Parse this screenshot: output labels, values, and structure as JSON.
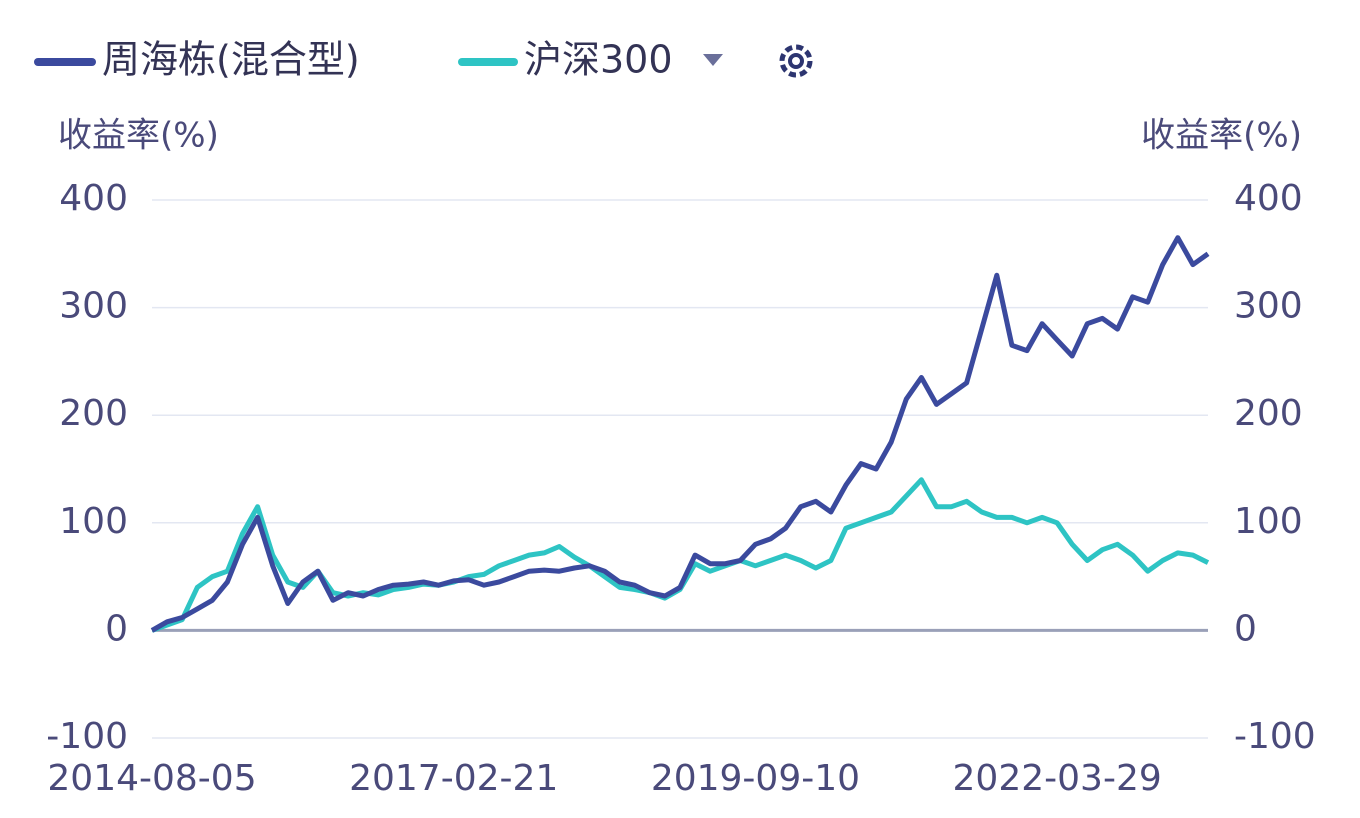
{
  "chart_data": {
    "type": "line",
    "y_label": "收益率(%)",
    "y2_label": "收益率(%)",
    "categories": [
      "2014-08-05",
      null,
      null,
      null,
      null,
      null,
      null,
      null,
      null,
      null,
      null,
      null,
      null,
      null,
      null,
      null,
      null,
      null,
      null,
      null,
      "2017-02-21",
      null,
      null,
      null,
      null,
      null,
      null,
      null,
      null,
      null,
      null,
      null,
      null,
      null,
      null,
      null,
      null,
      null,
      null,
      null,
      "2019-09-10",
      null,
      null,
      null,
      null,
      null,
      null,
      null,
      null,
      null,
      null,
      null,
      null,
      null,
      null,
      null,
      null,
      null,
      null,
      null,
      "2022-03-29",
      null,
      null,
      null,
      null,
      null,
      null,
      null,
      null,
      null,
      null
    ],
    "series": [
      {
        "name": "周海栋(混合型)",
        "color": "#3b4a9e",
        "values": [
          0,
          8,
          12,
          20,
          28,
          45,
          80,
          105,
          60,
          25,
          45,
          55,
          28,
          35,
          32,
          38,
          42,
          43,
          45,
          42,
          46,
          47,
          42,
          45,
          50,
          55,
          56,
          55,
          58,
          60,
          55,
          45,
          42,
          35,
          32,
          40,
          70,
          62,
          62,
          65,
          80,
          85,
          95,
          115,
          120,
          110,
          135,
          155,
          150,
          175,
          215,
          235,
          210,
          220,
          230,
          280,
          330,
          265,
          260,
          285,
          270,
          255,
          285,
          290,
          280,
          310,
          305,
          340,
          365,
          340,
          350
        ]
      },
      {
        "name": "沪深300",
        "color": "#2ec4c4",
        "values": [
          0,
          5,
          10,
          40,
          50,
          55,
          90,
          115,
          70,
          45,
          40,
          55,
          35,
          32,
          35,
          33,
          38,
          40,
          43,
          42,
          45,
          50,
          52,
          60,
          65,
          70,
          72,
          78,
          68,
          60,
          50,
          40,
          38,
          35,
          30,
          38,
          62,
          55,
          60,
          65,
          60,
          65,
          70,
          65,
          58,
          65,
          95,
          100,
          105,
          110,
          125,
          140,
          115,
          115,
          120,
          110,
          105,
          105,
          100,
          105,
          100,
          80,
          65,
          75,
          80,
          70,
          55,
          65,
          72,
          70,
          63
        ]
      }
    ],
    "ylim": [
      -100,
      400
    ],
    "yticks": [
      -100,
      0,
      100,
      200,
      300,
      400
    ],
    "y2lim": [
      -100,
      400
    ],
    "y2ticks": [
      -100,
      0,
      100,
      200,
      300,
      400
    ],
    "grid": true
  }
}
